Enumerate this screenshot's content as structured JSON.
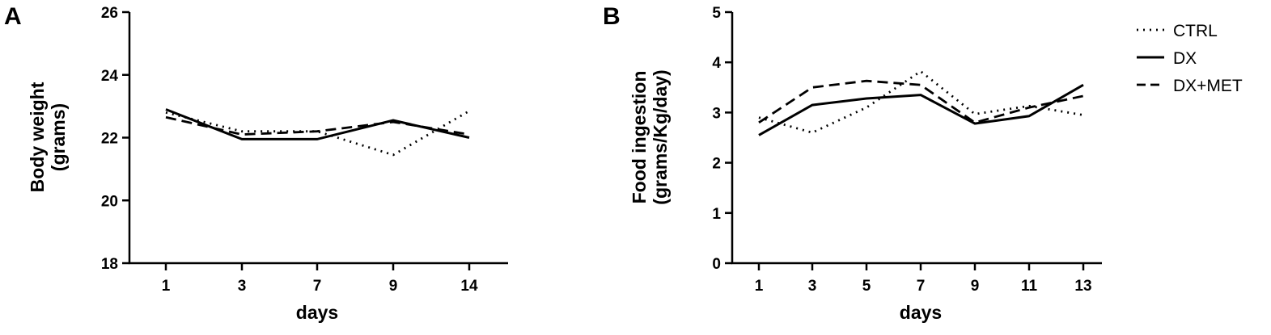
{
  "chart_data": [
    {
      "type": "line",
      "panel_label": "A",
      "title": "",
      "xlabel": "days",
      "ylabel_line1": "Body weight",
      "ylabel_line2": "(grams)",
      "categories": [
        "1",
        "3",
        "7",
        "9",
        "14"
      ],
      "ylim": [
        18,
        26
      ],
      "yticks": [
        18,
        20,
        22,
        24,
        26
      ],
      "grid": false,
      "series": [
        {
          "name": "CTRL",
          "style": "dotted",
          "values": [
            22.8,
            22.2,
            22.2,
            21.45,
            22.85
          ]
        },
        {
          "name": "DX",
          "style": "solid",
          "values": [
            22.9,
            21.95,
            21.95,
            22.55,
            22.0
          ]
        },
        {
          "name": "DX+MET",
          "style": "dashed",
          "values": [
            22.65,
            22.1,
            22.2,
            22.5,
            22.1
          ]
        }
      ]
    },
    {
      "type": "line",
      "panel_label": "B",
      "title": "",
      "xlabel": "days",
      "ylabel_line1": "Food ingestion",
      "ylabel_line2": "(grams/Kg/day)",
      "categories": [
        "1",
        "3",
        "5",
        "7",
        "9",
        "11",
        "13"
      ],
      "ylim": [
        0,
        5
      ],
      "yticks": [
        0,
        1,
        2,
        3,
        4,
        5
      ],
      "grid": false,
      "legend_position": "right",
      "series": [
        {
          "name": "CTRL",
          "style": "dotted",
          "values": [
            2.9,
            2.6,
            3.1,
            3.82,
            2.97,
            3.13,
            2.95
          ]
        },
        {
          "name": "DX",
          "style": "solid",
          "values": [
            2.55,
            3.15,
            3.28,
            3.35,
            2.78,
            2.93,
            3.55
          ]
        },
        {
          "name": "DX+MET",
          "style": "dashed",
          "values": [
            2.8,
            3.5,
            3.63,
            3.55,
            2.8,
            3.1,
            3.33
          ]
        }
      ]
    }
  ],
  "legend": {
    "items": [
      {
        "label": "CTRL",
        "style": "dotted"
      },
      {
        "label": "DX",
        "style": "solid"
      },
      {
        "label": "DX+MET",
        "style": "dashed"
      }
    ]
  },
  "colors": {
    "line": "#000000",
    "background": "#ffffff"
  }
}
